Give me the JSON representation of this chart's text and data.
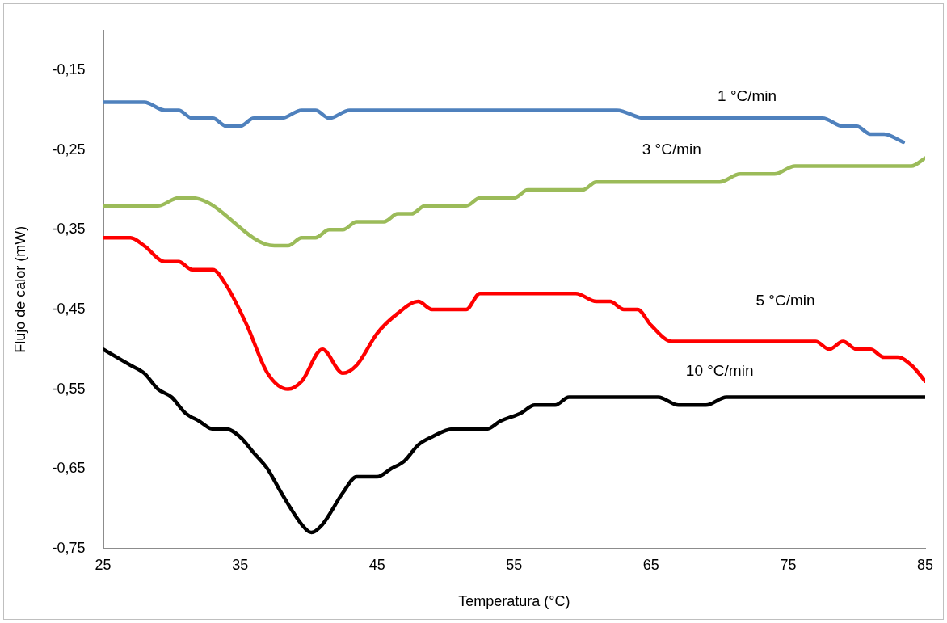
{
  "chart_data": {
    "type": "line",
    "xlabel": "Temperatura (°C)",
    "ylabel": "Flujo de calor (mW)",
    "xlim": [
      25,
      85
    ],
    "xticks": [
      25,
      35,
      45,
      55,
      65,
      75,
      85
    ],
    "ylim": [
      -0.75,
      -0.1
    ],
    "yticks": [
      {
        "value": -0.75,
        "label": "-0,75"
      },
      {
        "value": -0.65,
        "label": "-0,65"
      },
      {
        "value": -0.55,
        "label": "-0,55"
      },
      {
        "value": -0.45,
        "label": "-0,45"
      },
      {
        "value": -0.35,
        "label": "-0,35"
      },
      {
        "value": -0.25,
        "label": "-0,25"
      },
      {
        "value": -0.15,
        "label": "-0,15"
      }
    ],
    "grid": false,
    "legend": false,
    "marker": "none",
    "line_style": "solid",
    "series": [
      {
        "name": "1 °C/min",
        "color": "#4f81bd",
        "x": [
          25,
          28,
          29.5,
          30.5,
          31.5,
          33,
          34,
          35,
          36,
          38,
          39.5,
          40.5,
          41.5,
          43,
          62.5,
          64.5,
          77.5,
          79,
          80,
          81,
          82,
          83.4
        ],
        "values": [
          -0.19,
          -0.19,
          -0.2,
          -0.2,
          -0.21,
          -0.21,
          -0.22,
          -0.22,
          -0.21,
          -0.21,
          -0.2,
          -0.2,
          -0.21,
          -0.2,
          -0.2,
          -0.21,
          -0.21,
          -0.22,
          -0.22,
          -0.23,
          -0.23,
          -0.24
        ]
      },
      {
        "name": "3 °C/min",
        "color": "#9bbb59",
        "x": [
          25,
          29,
          30.5,
          31.5,
          37.5,
          38.5,
          39.5,
          40.5,
          41.5,
          42.5,
          43.5,
          45.5,
          46.5,
          47.5,
          48.5,
          51.5,
          52.5,
          55,
          56,
          60,
          61,
          70,
          71.5,
          74,
          75.5,
          84,
          85
        ],
        "values": [
          -0.32,
          -0.32,
          -0.31,
          -0.31,
          -0.37,
          -0.37,
          -0.36,
          -0.36,
          -0.35,
          -0.35,
          -0.34,
          -0.34,
          -0.33,
          -0.33,
          -0.32,
          -0.32,
          -0.31,
          -0.31,
          -0.3,
          -0.3,
          -0.29,
          -0.29,
          -0.28,
          -0.28,
          -0.27,
          -0.27,
          -0.26
        ]
      },
      {
        "name": "5 °C/min",
        "color": "#ff0000",
        "x": [
          25,
          27,
          28,
          29.5,
          30.5,
          31.5,
          33,
          34,
          35.5,
          37,
          38.5,
          39.5,
          41,
          42.5,
          43.5,
          45,
          46.5,
          48,
          49,
          51.5,
          52.5,
          59.5,
          61,
          62,
          63,
          64,
          65,
          66.5,
          77,
          78,
          79,
          80,
          81,
          82,
          83,
          84,
          85
        ],
        "values": [
          -0.36,
          -0.36,
          -0.37,
          -0.39,
          -0.39,
          -0.4,
          -0.4,
          -0.42,
          -0.47,
          -0.53,
          -0.55,
          -0.54,
          -0.5,
          -0.53,
          -0.52,
          -0.48,
          -0.455,
          -0.44,
          -0.45,
          -0.45,
          -0.43,
          -0.43,
          -0.44,
          -0.44,
          -0.45,
          -0.45,
          -0.47,
          -0.49,
          -0.49,
          -0.5,
          -0.49,
          -0.5,
          -0.5,
          -0.51,
          -0.51,
          -0.52,
          -0.54
        ]
      },
      {
        "name": "10 °C/min",
        "color": "#000000",
        "x": [
          25,
          27,
          28,
          29,
          30,
          31,
          32,
          33,
          34,
          35,
          36,
          37,
          38,
          39.5,
          40.2,
          41,
          42.5,
          43.5,
          45,
          46,
          47,
          48,
          49,
          50.5,
          53,
          54,
          55.5,
          56.5,
          58,
          59,
          65.5,
          67,
          69,
          70.5,
          85
        ],
        "values": [
          -0.5,
          -0.52,
          -0.53,
          -0.55,
          -0.56,
          -0.58,
          -0.59,
          -0.6,
          -0.6,
          -0.61,
          -0.63,
          -0.65,
          -0.68,
          -0.72,
          -0.73,
          -0.72,
          -0.68,
          -0.66,
          -0.66,
          -0.65,
          -0.64,
          -0.62,
          -0.61,
          -0.6,
          -0.6,
          -0.59,
          -0.58,
          -0.57,
          -0.57,
          -0.56,
          -0.56,
          -0.57,
          -0.57,
          -0.56,
          -0.56
        ]
      }
    ]
  }
}
